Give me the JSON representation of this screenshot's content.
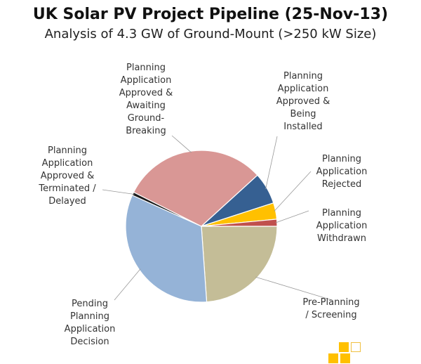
{
  "chart_data": {
    "type": "pie",
    "title": "UK Solar PV Project Pipeline (25-Nov-13)",
    "subtitle": "Analysis of 4.3 GW of Ground-Mount (>250 kW Size)",
    "slices": [
      {
        "key": "pre_planning",
        "label": [
          "Pre-Planning",
          "/ Screening"
        ],
        "value": 24,
        "color": "#c4bd97"
      },
      {
        "key": "pending",
        "label": [
          "Pending",
          "Planning",
          "Application",
          "Decision"
        ],
        "value": 33,
        "color": "#95b3d7"
      },
      {
        "key": "terminated",
        "label": [
          "Planning",
          "Application",
          "Approved &",
          "Terminated /",
          "Delayed"
        ],
        "value": 0.7,
        "color": "#1a1a1a"
      },
      {
        "key": "awaiting",
        "label": [
          "Planning",
          "Application",
          "Approved &",
          "Awaiting",
          "Ground-",
          "Breaking"
        ],
        "value": 31,
        "color": "#d99795"
      },
      {
        "key": "being_installed",
        "label": [
          "Planning",
          "Application",
          "Approved &",
          "Being",
          "Installed"
        ],
        "value": 6.8,
        "color": "#366092"
      },
      {
        "key": "rejected",
        "label": [
          "Planning",
          "Application",
          "Rejected"
        ],
        "value": 3.5,
        "color": "#ffc000"
      },
      {
        "key": "withdrawn",
        "label": [
          "Planning",
          "Application",
          "Withdrawn"
        ],
        "value": 1.5,
        "color": "#c0504d"
      }
    ],
    "start_angle_deg": 0,
    "direction": "clockwise"
  },
  "logo": {
    "colors": [
      "#ffc000",
      "#ffc000",
      "#ffc000"
    ]
  }
}
